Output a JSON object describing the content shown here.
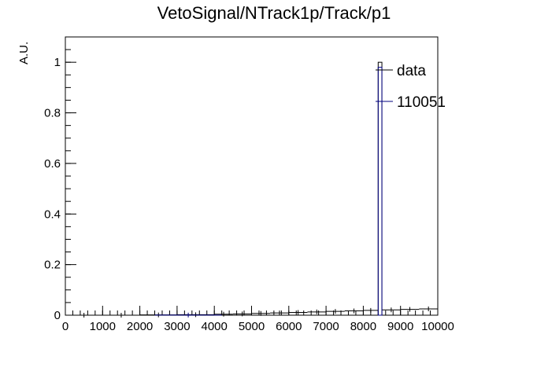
{
  "chart_data": {
    "type": "histogram",
    "title": "VetoSignal/NTrack1p/Track/p1",
    "xlabel": "",
    "ylabel": "A.U.",
    "xlim": [
      0,
      10000
    ],
    "ylim": [
      0,
      1.1
    ],
    "x_ticks": [
      0,
      1000,
      2000,
      3000,
      4000,
      5000,
      6000,
      7000,
      8000,
      9000,
      10000
    ],
    "y_ticks": [
      0,
      0.2,
      0.4,
      0.6,
      0.8,
      1
    ],
    "x_tick_labels": [
      "0",
      "1000",
      "2000",
      "3000",
      "4000",
      "5000",
      "6000",
      "7000",
      "8000",
      "9000",
      "10000"
    ],
    "y_tick_labels": [
      "0",
      "0.2",
      "0.4",
      "0.6",
      "0.8",
      "1"
    ],
    "legend": {
      "placement": "top-right",
      "entries": [
        "data",
        "110051"
      ]
    },
    "series": [
      {
        "name": "data",
        "color": "#000000",
        "bins": [
          {
            "x0": 0,
            "x1": 1000,
            "y": 0.0
          },
          {
            "x0": 1000,
            "x1": 2000,
            "y": 0.0
          },
          {
            "x0": 2000,
            "x1": 3000,
            "y": 0.001
          },
          {
            "x0": 3000,
            "x1": 4000,
            "y": 0.002
          },
          {
            "x0": 4000,
            "x1": 4500,
            "y": 0.004
          },
          {
            "x0": 4500,
            "x1": 5000,
            "y": 0.005
          },
          {
            "x0": 5000,
            "x1": 5500,
            "y": 0.007
          },
          {
            "x0": 5500,
            "x1": 6000,
            "y": 0.009
          },
          {
            "x0": 6000,
            "x1": 6500,
            "y": 0.011
          },
          {
            "x0": 6500,
            "x1": 7000,
            "y": 0.013
          },
          {
            "x0": 7000,
            "x1": 7500,
            "y": 0.015
          },
          {
            "x0": 7500,
            "x1": 8000,
            "y": 0.017
          },
          {
            "x0": 8000,
            "x1": 8400,
            "y": 0.019
          },
          {
            "x0": 8400,
            "x1": 8500,
            "y": 1.0
          },
          {
            "x0": 8500,
            "x1": 9000,
            "y": 0.021
          },
          {
            "x0": 9000,
            "x1": 9500,
            "y": 0.023
          },
          {
            "x0": 9500,
            "x1": 10000,
            "y": 0.025
          }
        ]
      },
      {
        "name": "110051",
        "color": "#000080",
        "bins": [
          {
            "x0": 2400,
            "x1": 4200,
            "y": 0.0005
          },
          {
            "x0": 8400,
            "x1": 8500,
            "y": 0.98
          }
        ]
      }
    ]
  }
}
